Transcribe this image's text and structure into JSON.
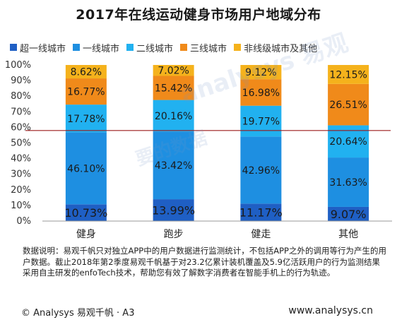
{
  "chart_data": {
    "type": "bar",
    "stacked": true,
    "title": "2017年在线运动健身市场用户地域分布",
    "categories": [
      "健身",
      "跑步",
      "健走",
      "其他"
    ],
    "ylim": [
      0,
      100
    ],
    "y_ticks": [
      "0%",
      "10%",
      "20%",
      "30%",
      "40%",
      "50%",
      "60%",
      "70%",
      "80%",
      "90%",
      "100%"
    ],
    "reference_line": 58,
    "legend_position": "top",
    "series": [
      {
        "name": "超一线城市",
        "color": "#1F5FC4",
        "values": [
          10.73,
          13.99,
          11.17,
          9.07
        ],
        "labels": [
          "10.73%",
          "13.99%",
          "11.17%",
          "9.07%"
        ]
      },
      {
        "name": "一线城市",
        "color": "#1E8FE1",
        "values": [
          46.1,
          43.42,
          42.96,
          31.63
        ],
        "labels": [
          "46.10%",
          "43.42%",
          "42.96%",
          "31.63%"
        ]
      },
      {
        "name": "二线城市",
        "color": "#21B1F0",
        "values": [
          17.78,
          20.16,
          19.77,
          20.64
        ],
        "labels": [
          "17.78%",
          "20.16%",
          "19.77%",
          "20.64%"
        ]
      },
      {
        "name": "三线城市",
        "color": "#F08A1A",
        "values": [
          16.77,
          15.42,
          16.98,
          26.51
        ],
        "labels": [
          "16.77%",
          "15.42%",
          "16.98%",
          "26.51%"
        ]
      },
      {
        "name": "非线级城市及其他",
        "color": "#F5B21C",
        "values": [
          8.62,
          7.02,
          9.12,
          12.15
        ],
        "labels": [
          "8.62%",
          "7.02%",
          "9.12%",
          "12.15%"
        ]
      }
    ]
  },
  "note": "数据说明：易观千帆只对独立APP中的用户数据进行监测统计，不包括APP之外的调用等行为产生的用户数据。截止2018年第2季度易观千帆基于对23.2亿累计装机覆盖及5.9亿活跃用户的行为监测结果采用自主研发的enfoTech技术，帮助您有效了解数字消费者在智能手机上的行为轨迹。",
  "footer": {
    "left": "© Analysys 易观千帆 · A3",
    "right": "www.analysys.cn"
  },
  "watermark": {
    "brand": "analysys 易观",
    "slogan": "要的数据"
  },
  "colors": {
    "reference_line": "#9B1B1B",
    "axis": "#999999"
  }
}
